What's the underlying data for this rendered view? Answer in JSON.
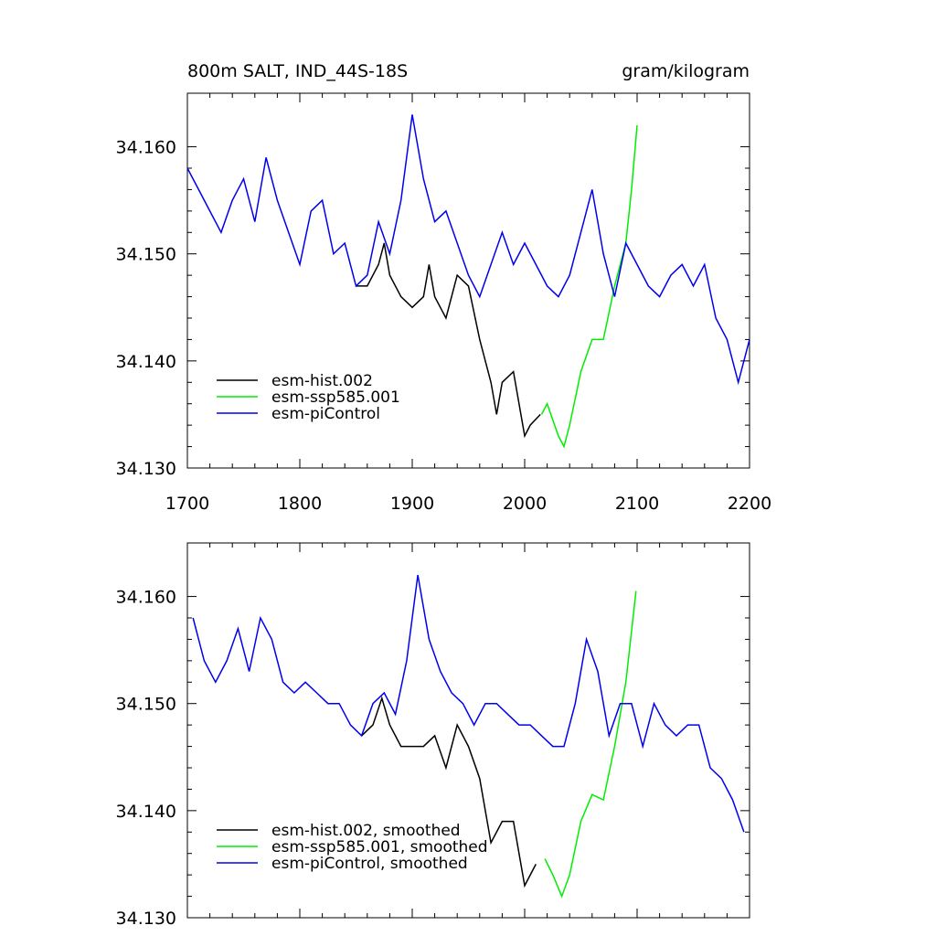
{
  "chart_data": [
    {
      "type": "line",
      "title": "800m SALT, IND_44S-18S",
      "units": "gram/kilogram",
      "xlim": [
        1700,
        2200
      ],
      "xticks": [
        1700,
        1800,
        1900,
        2000,
        2100,
        2200
      ],
      "show_xtick_labels": true,
      "ylim": [
        34.13,
        34.165
      ],
      "yticks": [
        {
          "value": 34.13,
          "label": "34.130"
        },
        {
          "value": 34.14,
          "label": "34.140"
        },
        {
          "value": 34.15,
          "label": "34.150"
        },
        {
          "value": 34.16,
          "label": "34.160"
        }
      ],
      "legend": "lower left",
      "series": [
        {
          "name": "esm-hist.002",
          "color": "#000000",
          "x": [
            1850,
            1860,
            1870,
            1875,
            1880,
            1890,
            1900,
            1910,
            1915,
            1920,
            1930,
            1940,
            1950,
            1960,
            1970,
            1975,
            1980,
            1990,
            2000,
            2005,
            2014
          ],
          "values": [
            34.147,
            34.147,
            34.149,
            34.151,
            34.148,
            34.146,
            34.145,
            34.146,
            34.149,
            34.146,
            34.144,
            34.148,
            34.147,
            34.142,
            34.138,
            34.135,
            34.138,
            34.139,
            34.133,
            34.134,
            34.135
          ]
        },
        {
          "name": "esm-ssp585.001",
          "color": "#00ee00",
          "x": [
            2015,
            2020,
            2030,
            2035,
            2040,
            2050,
            2060,
            2070,
            2080,
            2090,
            2095,
            2100
          ],
          "values": [
            34.135,
            34.136,
            34.133,
            34.132,
            34.134,
            34.139,
            34.142,
            34.142,
            34.147,
            34.151,
            34.156,
            34.162
          ]
        },
        {
          "name": "esm-piControl",
          "color": "#0000ee",
          "x": [
            1700,
            1710,
            1720,
            1730,
            1740,
            1750,
            1760,
            1770,
            1780,
            1790,
            1800,
            1810,
            1820,
            1830,
            1840,
            1850,
            1860,
            1870,
            1880,
            1890,
            1900,
            1910,
            1920,
            1930,
            1940,
            1950,
            1960,
            1970,
            1980,
            1990,
            2000,
            2010,
            2020,
            2030,
            2040,
            2050,
            2060,
            2070,
            2080,
            2090,
            2100,
            2110,
            2120,
            2130,
            2140,
            2150,
            2160,
            2170,
            2180,
            2190,
            2200
          ],
          "values": [
            34.158,
            34.156,
            34.154,
            34.152,
            34.155,
            34.157,
            34.153,
            34.159,
            34.155,
            34.152,
            34.149,
            34.154,
            34.155,
            34.15,
            34.151,
            34.147,
            34.148,
            34.153,
            34.15,
            34.155,
            34.163,
            34.157,
            34.153,
            34.154,
            34.151,
            34.148,
            34.146,
            34.149,
            34.152,
            34.149,
            34.151,
            34.149,
            34.147,
            34.146,
            34.148,
            34.152,
            34.156,
            34.15,
            34.146,
            34.151,
            34.149,
            34.147,
            34.146,
            34.148,
            34.149,
            34.147,
            34.149,
            34.144,
            34.142,
            34.138,
            34.142
          ]
        }
      ]
    },
    {
      "type": "line",
      "xlim": [
        1700,
        2200
      ],
      "xticks": [
        1700,
        1800,
        1900,
        2000,
        2100,
        2200
      ],
      "show_xtick_labels": false,
      "ylim": [
        34.13,
        34.165
      ],
      "yticks": [
        {
          "value": 34.13,
          "label": "34.130"
        },
        {
          "value": 34.14,
          "label": "34.140"
        },
        {
          "value": 34.15,
          "label": "34.150"
        },
        {
          "value": 34.16,
          "label": "34.160"
        }
      ],
      "legend": "lower left",
      "series": [
        {
          "name": "esm-hist.002, smoothed",
          "color": "#000000",
          "x": [
            1855,
            1865,
            1873,
            1880,
            1890,
            1900,
            1910,
            1920,
            1930,
            1940,
            1950,
            1960,
            1970,
            1980,
            1990,
            2000,
            2010
          ],
          "values": [
            34.147,
            34.148,
            34.1505,
            34.148,
            34.146,
            34.146,
            34.146,
            34.147,
            34.144,
            34.148,
            34.146,
            34.143,
            34.137,
            34.139,
            34.139,
            34.133,
            34.135
          ]
        },
        {
          "name": "esm-ssp585.001, smoothed",
          "color": "#00ee00",
          "x": [
            2018,
            2025,
            2033,
            2040,
            2050,
            2060,
            2070,
            2080,
            2090,
            2099
          ],
          "values": [
            34.1355,
            34.134,
            34.132,
            34.134,
            34.139,
            34.1415,
            34.141,
            34.146,
            34.152,
            34.1605
          ]
        },
        {
          "name": "esm-piControl, smoothed",
          "color": "#0000ee",
          "x": [
            1705,
            1715,
            1725,
            1735,
            1745,
            1755,
            1765,
            1775,
            1785,
            1795,
            1805,
            1815,
            1825,
            1835,
            1845,
            1855,
            1865,
            1875,
            1885,
            1895,
            1905,
            1915,
            1925,
            1935,
            1945,
            1955,
            1965,
            1975,
            1985,
            1995,
            2005,
            2015,
            2025,
            2035,
            2045,
            2055,
            2065,
            2075,
            2085,
            2095,
            2105,
            2115,
            2125,
            2135,
            2145,
            2155,
            2165,
            2175,
            2185,
            2195
          ],
          "values": [
            34.158,
            34.154,
            34.152,
            34.154,
            34.157,
            34.153,
            34.158,
            34.156,
            34.152,
            34.151,
            34.152,
            34.151,
            34.15,
            34.15,
            34.148,
            34.147,
            34.15,
            34.151,
            34.149,
            34.154,
            34.162,
            34.156,
            34.153,
            34.151,
            34.15,
            34.148,
            34.15,
            34.15,
            34.149,
            34.148,
            34.148,
            34.147,
            34.146,
            34.146,
            34.15,
            34.156,
            34.153,
            34.147,
            34.15,
            34.15,
            34.146,
            34.15,
            34.148,
            34.147,
            34.148,
            34.148,
            34.144,
            34.143,
            34.141,
            34.138
          ]
        }
      ]
    }
  ]
}
